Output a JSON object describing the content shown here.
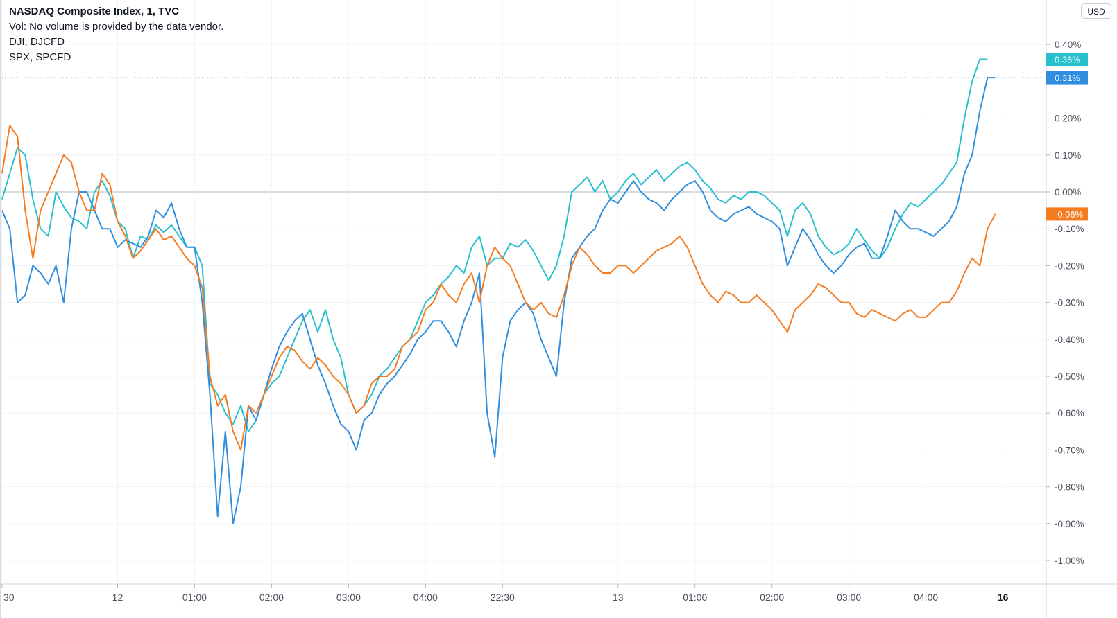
{
  "legend": {
    "title": "NASDAQ Composite Index, 1, TVC",
    "vol": "Vol: No volume is provided by the data vendor.",
    "compare1": "DJI, DJCFD",
    "compare2": "SPX, SPCFD"
  },
  "currency_button": "USD",
  "chart_data": {
    "type": "line",
    "ylim": [
      -1.05,
      0.45
    ],
    "y_ticks": [
      "0.40%",
      "0.20%",
      "0.10%",
      "0.00%",
      "-0.10%",
      "-0.20%",
      "-0.30%",
      "-0.40%",
      "-0.50%",
      "-0.60%",
      "-0.70%",
      "-0.80%",
      "-0.90%",
      "-1.00%"
    ],
    "y_tick_values": [
      0.4,
      0.2,
      0.1,
      0.0,
      -0.1,
      -0.2,
      -0.3,
      -0.4,
      -0.5,
      -0.6,
      -0.7,
      -0.8,
      -0.9,
      -1.0
    ],
    "x_ticks": [
      "30",
      "12",
      "01:00",
      "02:00",
      "03:00",
      "04:00",
      "22:30",
      "13",
      "01:00",
      "02:00",
      "03:00",
      "04:00",
      "16"
    ],
    "x_tick_index": [
      0,
      15,
      25,
      35,
      45,
      55,
      65,
      80,
      90,
      100,
      110,
      120,
      130
    ],
    "x_max_index": 134,
    "grid": true,
    "series": [
      {
        "name": "SPX, SPCFD",
        "color": "#26c0cf",
        "last_label": "0.36%",
        "values": [
          -0.02,
          0.05,
          0.12,
          0.1,
          -0.02,
          -0.1,
          -0.12,
          0.0,
          -0.04,
          -0.07,
          -0.08,
          -0.1,
          0.0,
          0.03,
          -0.01,
          -0.08,
          -0.1,
          -0.18,
          -0.12,
          -0.13,
          -0.09,
          -0.11,
          -0.09,
          -0.12,
          -0.15,
          -0.15,
          -0.2,
          -0.52,
          -0.55,
          -0.6,
          -0.63,
          -0.58,
          -0.65,
          -0.62,
          -0.55,
          -0.52,
          -0.5,
          -0.45,
          -0.4,
          -0.35,
          -0.32,
          -0.38,
          -0.32,
          -0.4,
          -0.45,
          -0.55,
          -0.6,
          -0.58,
          -0.55,
          -0.5,
          -0.48,
          -0.45,
          -0.42,
          -0.4,
          -0.35,
          -0.3,
          -0.28,
          -0.25,
          -0.23,
          -0.2,
          -0.22,
          -0.15,
          -0.12,
          -0.2,
          -0.18,
          -0.18,
          -0.14,
          -0.15,
          -0.13,
          -0.16,
          -0.2,
          -0.24,
          -0.2,
          -0.12,
          0.0,
          0.02,
          0.04,
          0.0,
          0.03,
          -0.02,
          0.0,
          0.03,
          0.05,
          0.02,
          0.04,
          0.06,
          0.03,
          0.05,
          0.07,
          0.08,
          0.06,
          0.03,
          0.01,
          -0.02,
          -0.03,
          -0.01,
          -0.02,
          0.0,
          0.0,
          -0.01,
          -0.03,
          -0.05,
          -0.12,
          -0.05,
          -0.03,
          -0.06,
          -0.12,
          -0.15,
          -0.17,
          -0.16,
          -0.14,
          -0.1,
          -0.13,
          -0.16,
          -0.18,
          -0.15,
          -0.1,
          -0.06,
          -0.03,
          -0.04,
          -0.02,
          0.0,
          0.02,
          0.05,
          0.08,
          0.2,
          0.3,
          0.36,
          0.36
        ]
      },
      {
        "name": "NASDAQ Composite Index",
        "color": "#2f8fde",
        "last_label": "0.31%",
        "values": [
          -0.05,
          -0.1,
          -0.3,
          -0.28,
          -0.2,
          -0.22,
          -0.25,
          -0.2,
          -0.3,
          -0.1,
          0.0,
          0.0,
          -0.05,
          -0.1,
          -0.1,
          -0.15,
          -0.13,
          -0.14,
          -0.15,
          -0.12,
          -0.05,
          -0.07,
          -0.03,
          -0.1,
          -0.15,
          -0.15,
          -0.3,
          -0.55,
          -0.88,
          -0.65,
          -0.9,
          -0.8,
          -0.58,
          -0.62,
          -0.55,
          -0.48,
          -0.42,
          -0.38,
          -0.35,
          -0.33,
          -0.4,
          -0.47,
          -0.52,
          -0.58,
          -0.63,
          -0.65,
          -0.7,
          -0.62,
          -0.6,
          -0.55,
          -0.52,
          -0.5,
          -0.47,
          -0.44,
          -0.4,
          -0.38,
          -0.35,
          -0.35,
          -0.38,
          -0.42,
          -0.35,
          -0.3,
          -0.22,
          -0.6,
          -0.72,
          -0.45,
          -0.35,
          -0.32,
          -0.3,
          -0.33,
          -0.4,
          -0.45,
          -0.5,
          -0.3,
          -0.18,
          -0.15,
          -0.12,
          -0.1,
          -0.05,
          -0.02,
          -0.03,
          0.0,
          0.03,
          0.0,
          -0.02,
          -0.03,
          -0.05,
          -0.02,
          0.0,
          0.02,
          0.03,
          0.0,
          -0.05,
          -0.07,
          -0.08,
          -0.06,
          -0.05,
          -0.04,
          -0.06,
          -0.07,
          -0.08,
          -0.1,
          -0.2,
          -0.15,
          -0.1,
          -0.13,
          -0.17,
          -0.2,
          -0.22,
          -0.2,
          -0.17,
          -0.15,
          -0.14,
          -0.18,
          -0.18,
          -0.12,
          -0.05,
          -0.08,
          -0.1,
          -0.1,
          -0.11,
          -0.12,
          -0.1,
          -0.08,
          -0.04,
          0.05,
          0.1,
          0.22,
          0.31,
          0.31
        ]
      },
      {
        "name": "DJI, DJCFD",
        "color": "#f57b1f",
        "last_label": "-0.06%",
        "values": [
          0.05,
          0.18,
          0.15,
          -0.05,
          -0.18,
          -0.05,
          0.0,
          0.05,
          0.1,
          0.08,
          0.0,
          -0.05,
          -0.05,
          0.05,
          0.02,
          -0.08,
          -0.12,
          -0.18,
          -0.16,
          -0.13,
          -0.1,
          -0.13,
          -0.12,
          -0.15,
          -0.18,
          -0.2,
          -0.26,
          -0.5,
          -0.58,
          -0.55,
          -0.65,
          -0.7,
          -0.58,
          -0.6,
          -0.55,
          -0.5,
          -0.45,
          -0.42,
          -0.43,
          -0.46,
          -0.48,
          -0.45,
          -0.47,
          -0.5,
          -0.52,
          -0.55,
          -0.6,
          -0.58,
          -0.52,
          -0.5,
          -0.5,
          -0.48,
          -0.42,
          -0.4,
          -0.38,
          -0.32,
          -0.3,
          -0.25,
          -0.28,
          -0.3,
          -0.25,
          -0.22,
          -0.3,
          -0.2,
          -0.15,
          -0.18,
          -0.2,
          -0.25,
          -0.3,
          -0.32,
          -0.3,
          -0.33,
          -0.34,
          -0.28,
          -0.2,
          -0.15,
          -0.17,
          -0.2,
          -0.22,
          -0.22,
          -0.2,
          -0.2,
          -0.22,
          -0.2,
          -0.18,
          -0.16,
          -0.15,
          -0.14,
          -0.12,
          -0.15,
          -0.2,
          -0.25,
          -0.28,
          -0.3,
          -0.27,
          -0.28,
          -0.3,
          -0.3,
          -0.28,
          -0.3,
          -0.32,
          -0.35,
          -0.38,
          -0.32,
          -0.3,
          -0.28,
          -0.25,
          -0.26,
          -0.28,
          -0.3,
          -0.3,
          -0.33,
          -0.34,
          -0.32,
          -0.33,
          -0.34,
          -0.35,
          -0.33,
          -0.32,
          -0.34,
          -0.34,
          -0.32,
          -0.3,
          -0.3,
          -0.27,
          -0.22,
          -0.18,
          -0.2,
          -0.1,
          -0.06
        ]
      }
    ],
    "reference_value": 0.31
  }
}
